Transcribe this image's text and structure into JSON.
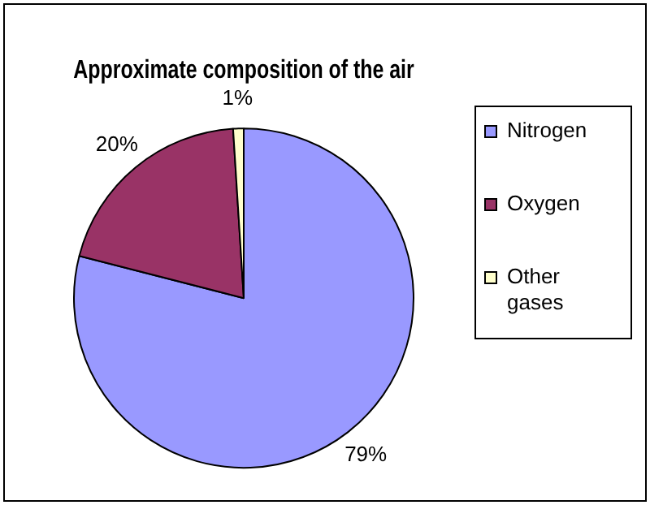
{
  "chart_data": {
    "type": "pie",
    "title": "Approximate composition of the air",
    "categories": [
      "Nitrogen",
      "Oxygen",
      "Other gases"
    ],
    "values": [
      79,
      20,
      1
    ],
    "colors": [
      "#9999ff",
      "#993366",
      "#ffffcc"
    ],
    "value_labels": [
      "79%",
      "20%",
      "1%"
    ],
    "legend": "right"
  }
}
